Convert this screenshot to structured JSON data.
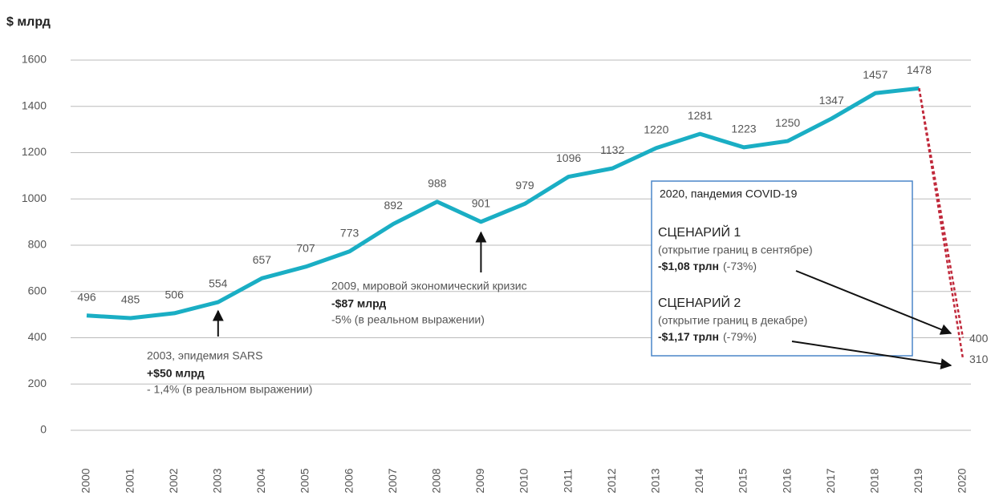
{
  "chart_data": {
    "type": "line",
    "y_label": "$ млрд",
    "categories": [
      "2000",
      "2001",
      "2002",
      "2003",
      "2004",
      "2005",
      "2006",
      "2007",
      "2008",
      "2009",
      "2010",
      "2011",
      "2012",
      "2013",
      "2014",
      "2015",
      "2016",
      "2017",
      "2018",
      "2019",
      "2020"
    ],
    "series": [
      {
        "name": null,
        "color": "#1aaec4",
        "values": [
          496,
          485,
          506,
          554,
          657,
          707,
          773,
          892,
          988,
          901,
          979,
          1096,
          1132,
          1220,
          1281,
          1223,
          1250,
          1347,
          1457,
          1478,
          null
        ]
      },
      {
        "name": "СЦЕНАРИЙ 1",
        "color": "#c0283a",
        "values": [
          null,
          null,
          null,
          null,
          null,
          null,
          null,
          null,
          null,
          null,
          null,
          null,
          null,
          null,
          null,
          null,
          null,
          null,
          null,
          null,
          400
        ]
      },
      {
        "name": "СЦЕНАРИЙ 2",
        "color": "#c0283a",
        "values": [
          null,
          null,
          null,
          null,
          null,
          null,
          null,
          null,
          null,
          null,
          null,
          null,
          null,
          null,
          null,
          null,
          null,
          null,
          null,
          null,
          310
        ]
      }
    ],
    "ylim": [
      0,
      1600
    ],
    "yticks": [
      0,
      200,
      400,
      600,
      800,
      1000,
      1200,
      1400,
      1600
    ],
    "grid": true,
    "annotations": [
      {
        "title": "2003, эпидемия SARS",
        "amount": "+$50 млрд",
        "note": "- 1,4% (в реальном выражении)"
      },
      {
        "title": "2009, мировой экономический кризис",
        "amount": "-$87 млрд",
        "note": "-5% (в реальном выражении)"
      }
    ],
    "box": {
      "title": "2020, пандемия COVID-19",
      "scenarios": [
        {
          "note": "(открытие границ в сентябре)",
          "amount": "-$1,08 трлн",
          "change": "(-73%)"
        },
        {
          "note": "(открытие границ в декабре)",
          "amount": "-$1,17 трлн",
          "change": "(-79%)"
        }
      ]
    }
  }
}
